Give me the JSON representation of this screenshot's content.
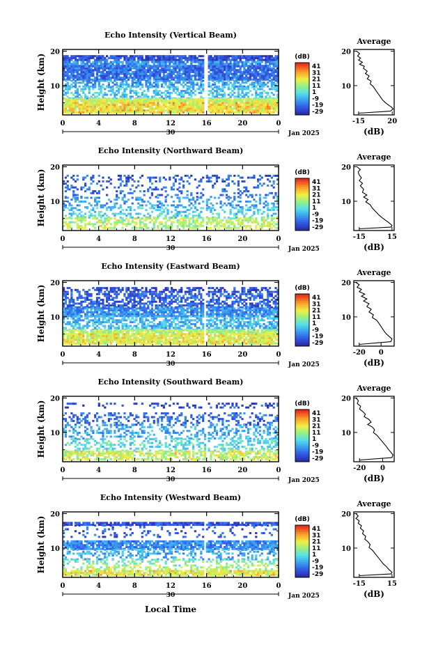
{
  "chart_data": [
    {
      "type": "heatmap",
      "title": "Echo Intensity (Vertical Beam)",
      "ylabel": "Height (km)",
      "yticks": [
        10,
        20
      ],
      "ylim": [
        1.5,
        20.5
      ],
      "x_ticks": [
        "0",
        "4",
        "8",
        "12",
        "16",
        "20",
        "0"
      ],
      "day_label": "30",
      "date_label": "Jan 2025",
      "colorbar": {
        "label": "(dB)",
        "ticks": [
          "41",
          "31",
          "21",
          "11",
          "1",
          "-9",
          "-19",
          "-29"
        ],
        "range": [
          -29,
          46
        ]
      },
      "seed": 11,
      "gap_x": [
        15.8,
        16.1
      ],
      "bands": [
        {
          "lo": 17.2,
          "hi": 18.8,
          "v": -20,
          "cov": 0.9
        },
        {
          "lo": 15.5,
          "hi": 17.1,
          "v": -10,
          "cov": 0.85
        },
        {
          "lo": 11.5,
          "hi": 15.4,
          "v": -15,
          "cov": 0.9
        },
        {
          "lo": 9.5,
          "hi": 11.4,
          "v": -8,
          "cov": 0.65
        },
        {
          "lo": 6,
          "hi": 9.4,
          "v": -2,
          "cov": 0.5
        },
        {
          "lo": 2,
          "hi": 5.9,
          "v": 18,
          "cov": 0.95
        }
      ],
      "profile": {
        "title": "Average",
        "xlabel": "(dB)",
        "xticks": [
          -15,
          20
        ],
        "xlim": [
          -20,
          22
        ],
        "ylim": [
          1.5,
          20.5
        ],
        "yticks": [
          10,
          20
        ],
        "points": [
          [
            -17,
            20
          ],
          [
            -14,
            19.3
          ],
          [
            -16,
            18.6
          ],
          [
            -13,
            18
          ],
          [
            -15,
            17.4
          ],
          [
            -11,
            16.8
          ],
          [
            -14,
            16.2
          ],
          [
            -9,
            15.6
          ],
          [
            -10,
            15
          ],
          [
            -6,
            14.2
          ],
          [
            -8,
            13.5
          ],
          [
            -4,
            12.8
          ],
          [
            -6,
            12
          ],
          [
            -2,
            11.3
          ],
          [
            -3,
            10.5
          ],
          [
            0,
            9.8
          ],
          [
            2,
            9
          ],
          [
            4,
            8.2
          ],
          [
            6,
            7.4
          ],
          [
            8,
            6.6
          ],
          [
            10,
            5.8
          ],
          [
            13,
            5
          ],
          [
            16,
            4.4
          ],
          [
            19,
            3.8
          ],
          [
            21,
            3.2
          ],
          [
            18,
            2.6
          ],
          [
            -15,
            2
          ]
        ]
      }
    },
    {
      "type": "heatmap",
      "title": "Echo Intensity (Northward Beam)",
      "ylabel": "Height (km)",
      "yticks": [
        10,
        20
      ],
      "ylim": [
        1.5,
        20.5
      ],
      "x_ticks": [
        "0",
        "4",
        "8",
        "12",
        "16",
        "20",
        "0"
      ],
      "day_label": "30",
      "date_label": "Jan 2025",
      "colorbar": {
        "label": "(dB)",
        "ticks": [
          "41",
          "31",
          "21",
          "11",
          "1",
          "-9",
          "-19",
          "-29"
        ],
        "range": [
          -29,
          46
        ]
      },
      "seed": 23,
      "gap_x": [
        15.8,
        16.0
      ],
      "bands": [
        {
          "lo": 15.5,
          "hi": 17.5,
          "v": -18,
          "cov": 0.3
        },
        {
          "lo": 11,
          "hi": 15.4,
          "v": -15,
          "cov": 0.2
        },
        {
          "lo": 8,
          "hi": 10.9,
          "v": -8,
          "cov": 0.3
        },
        {
          "lo": 5,
          "hi": 7.9,
          "v": 0,
          "cov": 0.35
        },
        {
          "lo": 2,
          "hi": 4.9,
          "v": 10,
          "cov": 0.55
        }
      ],
      "profile": {
        "title": "Average",
        "xlabel": "(dB)",
        "xticks": [
          -15,
          15
        ],
        "xlim": [
          -20,
          17
        ],
        "ylim": [
          1.5,
          20.5
        ],
        "yticks": [
          10,
          20
        ],
        "points": [
          [
            -17,
            20
          ],
          [
            -14,
            19.2
          ],
          [
            -16,
            18.5
          ],
          [
            -15,
            17.6
          ],
          [
            -13,
            16.8
          ],
          [
            -15,
            16
          ],
          [
            -12,
            15.2
          ],
          [
            -14,
            14.5
          ],
          [
            -11,
            13.5
          ],
          [
            -12,
            12.6
          ],
          [
            -8,
            11.8
          ],
          [
            -11,
            11.2
          ],
          [
            -7,
            10.5
          ],
          [
            -9,
            9.8
          ],
          [
            -5,
            9
          ],
          [
            -3,
            8
          ],
          [
            0,
            7
          ],
          [
            3,
            6
          ],
          [
            6,
            5.2
          ],
          [
            9,
            4.5
          ],
          [
            12,
            3.8
          ],
          [
            15,
            3
          ],
          [
            14,
            2.5
          ],
          [
            -15,
            2
          ]
        ]
      }
    },
    {
      "type": "heatmap",
      "title": "Echo Intensity (Eastward Beam)",
      "ylabel": "Height (km)",
      "yticks": [
        10,
        20
      ],
      "ylim": [
        1.5,
        20.5
      ],
      "x_ticks": [
        "0",
        "4",
        "8",
        "12",
        "16",
        "20",
        "0"
      ],
      "day_label": "30",
      "date_label": "Jan 2025",
      "colorbar": {
        "label": "(dB)",
        "ticks": [
          "41",
          "31",
          "21",
          "11",
          "1",
          "-9",
          "-19",
          "-29"
        ],
        "range": [
          -29,
          46
        ]
      },
      "seed": 37,
      "gap_x": [
        15.7,
        16.0
      ],
      "bands": [
        {
          "lo": 17,
          "hi": 18.3,
          "v": -20,
          "cov": 0.55
        },
        {
          "lo": 12.5,
          "hi": 16.5,
          "v": -17,
          "cov": 0.6
        },
        {
          "lo": 10,
          "hi": 12.4,
          "v": -10,
          "cov": 0.85
        },
        {
          "lo": 6,
          "hi": 9.9,
          "v": -4,
          "cov": 0.6
        },
        {
          "lo": 2,
          "hi": 5.9,
          "v": 15,
          "cov": 0.9
        }
      ],
      "profile": {
        "title": "Average",
        "xlabel": "(dB)",
        "xticks": [
          -20,
          0
        ],
        "xlim": [
          -25,
          12
        ],
        "ylim": [
          1.5,
          20.5
        ],
        "yticks": [
          10,
          20
        ],
        "points": [
          [
            -23,
            20
          ],
          [
            -20,
            19.3
          ],
          [
            -22,
            18.6
          ],
          [
            -18,
            18
          ],
          [
            -20,
            17.3
          ],
          [
            -15,
            16.6
          ],
          [
            -18,
            16
          ],
          [
            -13,
            15.2
          ],
          [
            -16,
            14.6
          ],
          [
            -11,
            13.8
          ],
          [
            -13,
            13
          ],
          [
            -9,
            12.2
          ],
          [
            -11,
            11.4
          ],
          [
            -7,
            10.6
          ],
          [
            -8,
            9.8
          ],
          [
            -4,
            9
          ],
          [
            -2,
            8.1
          ],
          [
            0,
            7.2
          ],
          [
            2,
            6.2
          ],
          [
            4,
            5.3
          ],
          [
            7,
            4.4
          ],
          [
            10,
            3.6
          ],
          [
            9,
            2.8
          ],
          [
            -20,
            2
          ]
        ]
      }
    },
    {
      "type": "heatmap",
      "title": "Echo Intensity (Southward Beam)",
      "ylabel": "Height (km)",
      "yticks": [
        10,
        20
      ],
      "ylim": [
        1.5,
        20.5
      ],
      "x_ticks": [
        "0",
        "4",
        "8",
        "12",
        "16",
        "20",
        "0"
      ],
      "day_label": "30",
      "date_label": "Jan 2025",
      "colorbar": {
        "label": "(dB)",
        "ticks": [
          "41",
          "31",
          "21",
          "11",
          "1",
          "-9",
          "-19",
          "-29"
        ],
        "range": [
          -29,
          46
        ]
      },
      "seed": 51,
      "gap_x": [
        15.9,
        16.1
      ],
      "bands": [
        {
          "lo": 17,
          "hi": 18.2,
          "v": -20,
          "cov": 0.25
        },
        {
          "lo": 12,
          "hi": 15.5,
          "v": -16,
          "cov": 0.35
        },
        {
          "lo": 8,
          "hi": 11.9,
          "v": -6,
          "cov": 0.35
        },
        {
          "lo": 4.5,
          "hi": 7.9,
          "v": 2,
          "cov": 0.4
        },
        {
          "lo": 2,
          "hi": 4.4,
          "v": 12,
          "cov": 0.65
        }
      ],
      "profile": {
        "title": "Average",
        "xlabel": "(dB)",
        "xticks": [
          -20,
          0
        ],
        "xlim": [
          -25,
          10
        ],
        "ylim": [
          1.5,
          20.5
        ],
        "yticks": [
          10,
          20
        ],
        "points": [
          [
            -23,
            20
          ],
          [
            -21,
            19.2
          ],
          [
            -22,
            18.4
          ],
          [
            -19,
            17.6
          ],
          [
            -20,
            16.8
          ],
          [
            -17,
            16
          ],
          [
            -15,
            15.3
          ],
          [
            -16,
            14.6
          ],
          [
            -12,
            13.8
          ],
          [
            -10,
            13
          ],
          [
            -13,
            12.3
          ],
          [
            -9,
            11.6
          ],
          [
            -7,
            10.8
          ],
          [
            -8,
            10
          ],
          [
            -5,
            9.2
          ],
          [
            -3,
            8.4
          ],
          [
            -1,
            7.6
          ],
          [
            1,
            6.8
          ],
          [
            3,
            6
          ],
          [
            5,
            5.1
          ],
          [
            7,
            4.3
          ],
          [
            9,
            3.5
          ],
          [
            8,
            2.7
          ],
          [
            -20,
            2
          ]
        ]
      }
    },
    {
      "type": "heatmap",
      "title": "Echo Intensity (Westward Beam)",
      "ylabel": "Height (km)",
      "yticks": [
        10,
        20
      ],
      "ylim": [
        1.5,
        20.5
      ],
      "x_ticks": [
        "0",
        "4",
        "8",
        "12",
        "16",
        "20",
        "0"
      ],
      "day_label": "30",
      "date_label": "Jan 2025",
      "colorbar": {
        "label": "(dB)",
        "ticks": [
          "41",
          "31",
          "21",
          "11",
          "1",
          "-9",
          "-19",
          "-29"
        ],
        "range": [
          -29,
          46
        ]
      },
      "seed": 67,
      "gap_x": [
        15.7,
        16.0
      ],
      "bands": [
        {
          "lo": 16.5,
          "hi": 17.5,
          "v": -20,
          "cov": 0.85
        },
        {
          "lo": 13,
          "hi": 16.4,
          "v": -18,
          "cov": 0.15
        },
        {
          "lo": 9.5,
          "hi": 12,
          "v": -11,
          "cov": 0.85
        },
        {
          "lo": 6.5,
          "hi": 9.4,
          "v": -6,
          "cov": 0.35
        },
        {
          "lo": 2.5,
          "hi": 6.4,
          "v": 8,
          "cov": 0.35
        },
        {
          "lo": 2,
          "hi": 3.4,
          "v": 16,
          "cov": 0.85
        }
      ],
      "profile": {
        "title": "Average",
        "xlabel": "(dB)",
        "xticks": [
          -15,
          15
        ],
        "xlim": [
          -20,
          17
        ],
        "ylim": [
          1.5,
          20.5
        ],
        "yticks": [
          10,
          20
        ],
        "points": [
          [
            -18,
            20
          ],
          [
            -16,
            19.3
          ],
          [
            -18,
            18.6
          ],
          [
            -15,
            17.9
          ],
          [
            -16,
            17.2
          ],
          [
            -13,
            16.5
          ],
          [
            -14,
            15.8
          ],
          [
            -11,
            15
          ],
          [
            -12,
            14.2
          ],
          [
            -9,
            13.4
          ],
          [
            -10,
            12.6
          ],
          [
            -7,
            11.8
          ],
          [
            -5,
            11
          ],
          [
            -6,
            10.2
          ],
          [
            -3,
            9.4
          ],
          [
            -1,
            8.6
          ],
          [
            1,
            7.8
          ],
          [
            3,
            7
          ],
          [
            5,
            6.2
          ],
          [
            7,
            5.4
          ],
          [
            10,
            4.6
          ],
          [
            12,
            3.8
          ],
          [
            15,
            3
          ],
          [
            14,
            2.5
          ],
          [
            -15,
            2
          ]
        ]
      }
    }
  ],
  "xlabel": "Local Time"
}
